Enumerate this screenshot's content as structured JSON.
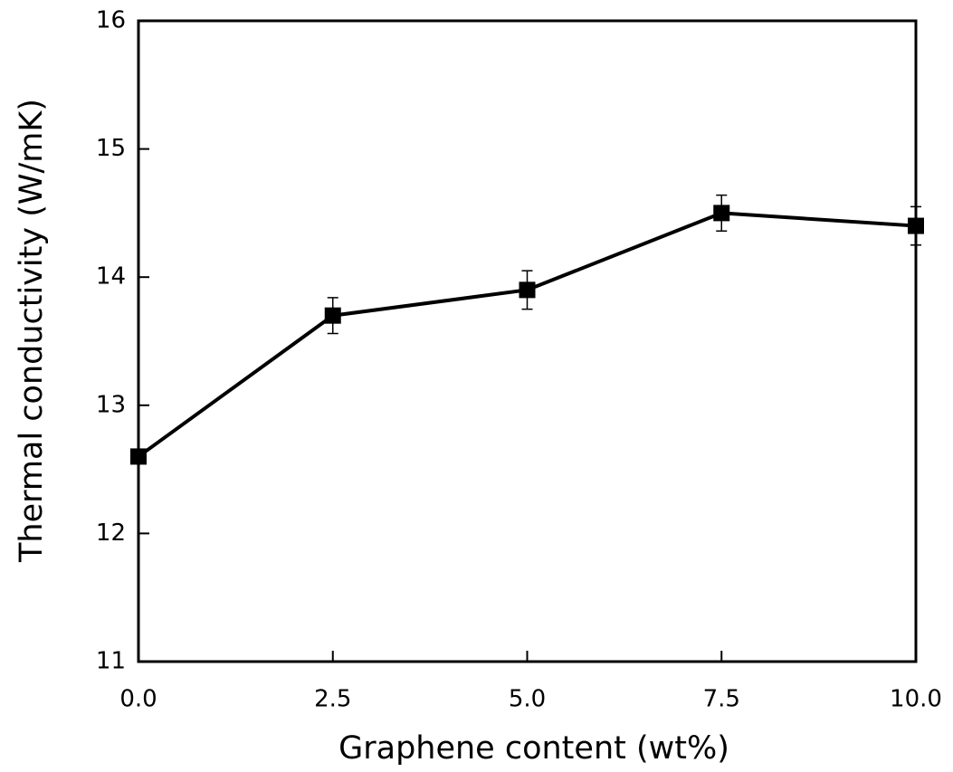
{
  "chart_data": {
    "type": "line",
    "x_label": "Graphene content (wt%)",
    "y_label": "Thermal conductivity (W/mK)",
    "x": [
      0,
      2.5,
      5,
      7.5,
      10
    ],
    "series": [
      {
        "color": "#000000",
        "values": [
          12.6,
          13.7,
          13.9,
          14.5,
          14.4
        ],
        "errors": [
          0.05,
          0.14,
          0.15,
          0.14,
          0.15
        ]
      }
    ],
    "xlim": [
      0,
      10
    ],
    "xticks": [
      {
        "value": 0,
        "label": "0.0"
      },
      2.5,
      {
        "value": 5,
        "label": "5.0"
      },
      7.5,
      {
        "value": 10,
        "label": "10.0"
      }
    ],
    "ylim": [
      11,
      16
    ],
    "yticks": [
      11,
      12,
      13,
      14,
      15,
      16
    ],
    "marker": "square"
  }
}
